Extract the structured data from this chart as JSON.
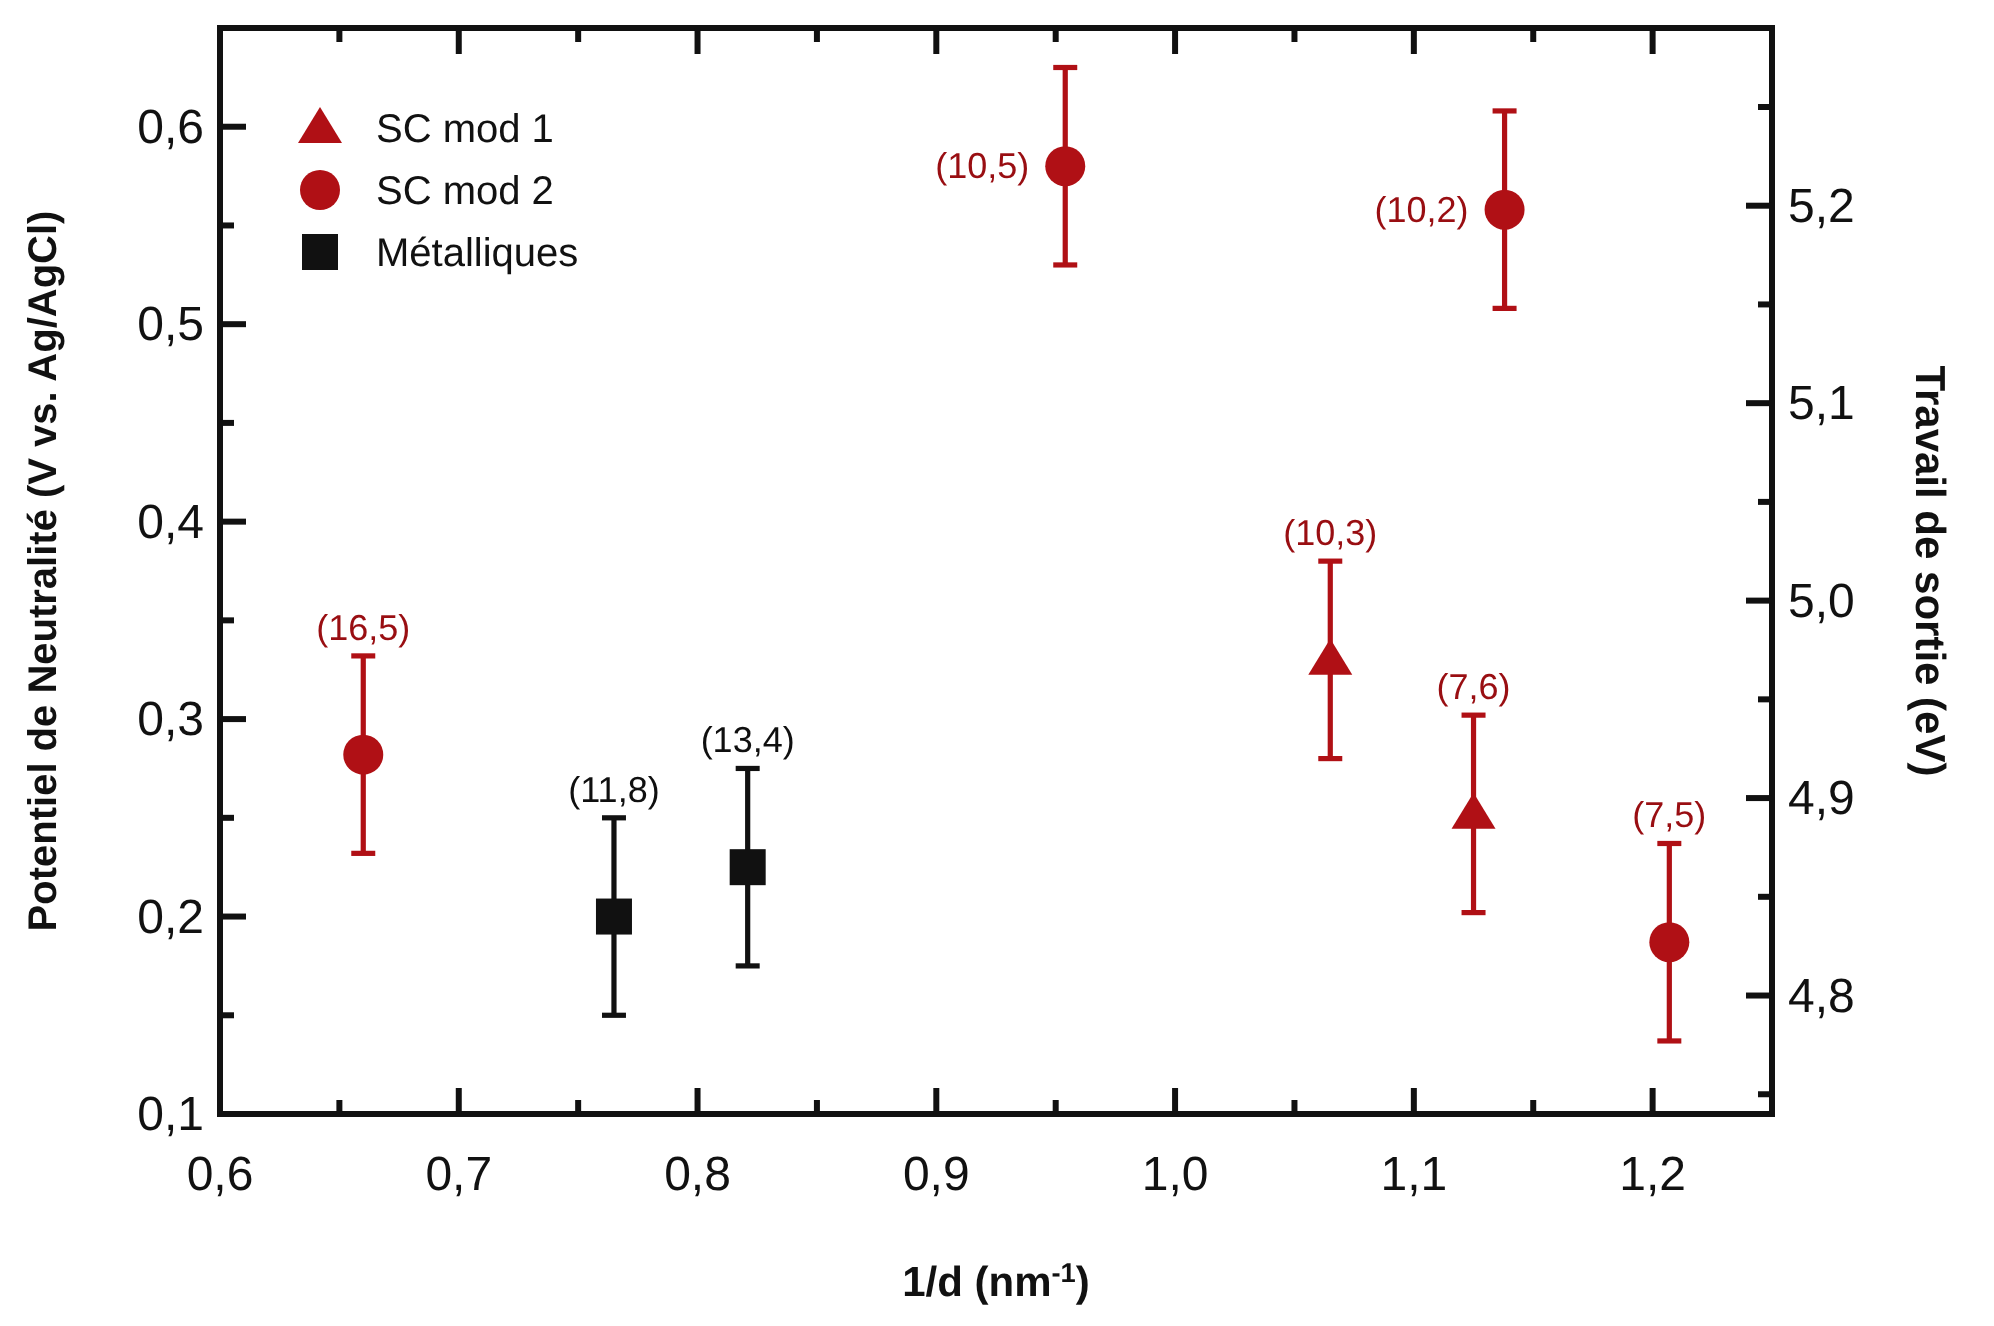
{
  "chart_data": {
    "type": "scatter",
    "xlabel": "1/d (nm$^{-1}$)",
    "ylabel": "Potentiel de Neutralité (V vs. Ag/AgCl)",
    "y2label": "Travail de sortie (eV)",
    "xlim": [
      0.6,
      1.25
    ],
    "ylim": [
      0.1,
      0.65
    ],
    "y2lim": [
      4.74,
      5.29
    ],
    "xticks": [
      {
        "value": 0.6,
        "label": "0,6"
      },
      {
        "value": 0.65,
        "label": null
      },
      {
        "value": 0.7,
        "label": "0,7"
      },
      {
        "value": 0.75,
        "label": null
      },
      {
        "value": 0.8,
        "label": "0,8"
      },
      {
        "value": 0.85,
        "label": null
      },
      {
        "value": 0.9,
        "label": "0,9"
      },
      {
        "value": 0.95,
        "label": null
      },
      {
        "value": 1.0,
        "label": "1,0"
      },
      {
        "value": 1.05,
        "label": null
      },
      {
        "value": 1.1,
        "label": "1,1"
      },
      {
        "value": 1.15,
        "label": null
      },
      {
        "value": 1.2,
        "label": "1,2"
      }
    ],
    "yticks": [
      {
        "value": 0.1,
        "label": "0,1"
      },
      {
        "value": 0.15,
        "label": null
      },
      {
        "value": 0.2,
        "label": "0,2"
      },
      {
        "value": 0.25,
        "label": null
      },
      {
        "value": 0.3,
        "label": "0,3"
      },
      {
        "value": 0.35,
        "label": null
      },
      {
        "value": 0.4,
        "label": "0,4"
      },
      {
        "value": 0.45,
        "label": null
      },
      {
        "value": 0.5,
        "label": "0,5"
      },
      {
        "value": 0.55,
        "label": null
      },
      {
        "value": 0.6,
        "label": "0,6"
      }
    ],
    "y2ticks": [
      {
        "value": 4.75,
        "label": null
      },
      {
        "value": 4.8,
        "label": "4,8"
      },
      {
        "value": 4.85,
        "label": null
      },
      {
        "value": 4.9,
        "label": "4,9"
      },
      {
        "value": 4.95,
        "label": null
      },
      {
        "value": 5.0,
        "label": "5,0"
      },
      {
        "value": 5.05,
        "label": null
      },
      {
        "value": 5.1,
        "label": "5,1"
      },
      {
        "value": 5.15,
        "label": null
      },
      {
        "value": 5.2,
        "label": "5,2"
      },
      {
        "value": 5.25,
        "label": null
      }
    ],
    "series": [
      {
        "name": "SC mod 1",
        "color": "#b01015",
        "marker": "triangle",
        "x": [
          1.065,
          1.125
        ],
        "values": [
          0.33,
          0.252
        ],
        "errors": [
          0.05,
          0.05
        ]
      },
      {
        "name": "SC mod 2",
        "color": "#b01015",
        "marker": "circle",
        "x": [
          0.66,
          0.954,
          1.138,
          1.207
        ],
        "values": [
          0.282,
          0.58,
          0.558,
          0.187
        ],
        "errors": [
          0.05,
          0.05,
          0.05,
          0.05
        ]
      },
      {
        "name": "Métalliques",
        "color": "#111111",
        "marker": "square",
        "x": [
          0.765,
          0.821
        ],
        "values": [
          0.2,
          0.225
        ],
        "errors": [
          0.05,
          0.05
        ]
      }
    ],
    "annotations": [
      {
        "text": "(16,5)",
        "x": 0.66,
        "y": 0.332
      },
      {
        "text": "(11,8)",
        "x": 0.765,
        "y": 0.25
      },
      {
        "text": "(13,4)",
        "x": 0.821,
        "y": 0.275
      },
      {
        "text": "(10,5)",
        "x": 0.954,
        "y": 0.58
      },
      {
        "text": "(10,2)",
        "x": 1.138,
        "y": 0.558
      },
      {
        "text": "(10,3)",
        "x": 1.065,
        "y": 0.38
      },
      {
        "text": "(7,6)",
        "x": 1.125,
        "y": 0.302
      },
      {
        "text": "(7,5)",
        "x": 1.207,
        "y": 0.237
      }
    ],
    "legend": "top left",
    "grid": false
  }
}
